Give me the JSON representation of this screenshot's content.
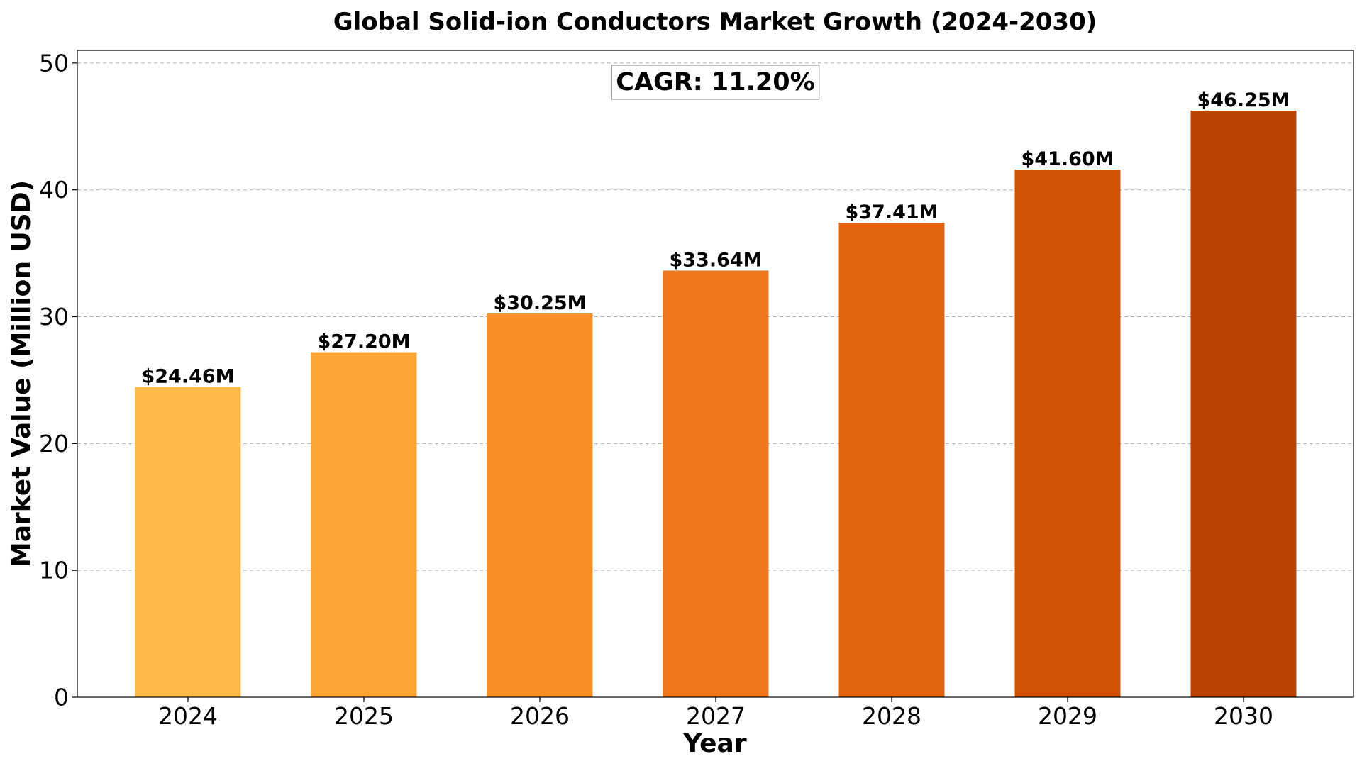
{
  "chart_data": {
    "type": "bar",
    "title": "Global Solid-ion Conductors Market Growth (2024-2030)",
    "xlabel": "Year",
    "ylabel": "Market Value (Million USD)",
    "categories": [
      "2024",
      "2025",
      "2026",
      "2027",
      "2028",
      "2029",
      "2030"
    ],
    "values": [
      24.46,
      27.2,
      30.25,
      33.64,
      37.41,
      41.6,
      46.25
    ],
    "data_labels": [
      "$24.46M",
      "$27.20M",
      "$30.25M",
      "$33.64M",
      "$37.41M",
      "$41.60M",
      "$46.25M"
    ],
    "bar_colors": [
      "#fdb948",
      "#fca434",
      "#f89025",
      "#ef771b",
      "#e2640f",
      "#d05004",
      "#b84303"
    ],
    "ylim": [
      0,
      51
    ],
    "yticks": [
      0,
      10,
      20,
      30,
      40,
      50
    ],
    "grid": "y-dashed",
    "annotation": "CAGR: 11.20%"
  }
}
